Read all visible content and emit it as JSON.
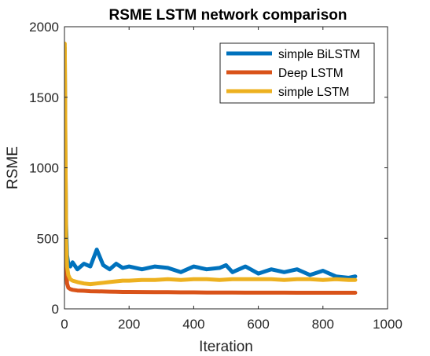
{
  "chart_data": {
    "type": "line",
    "title": "RSME LSTM network comparison",
    "xlabel": "Iteration",
    "ylabel": "RSME",
    "xlim": [
      0,
      1000
    ],
    "ylim": [
      0,
      2000
    ],
    "xticks": [
      0,
      200,
      400,
      600,
      800,
      1000
    ],
    "yticks": [
      0,
      500,
      1000,
      1500,
      2000
    ],
    "xtick_labels": [
      "0",
      "200",
      "400",
      "600",
      "800",
      "1000"
    ],
    "ytick_labels": [
      "0",
      "500",
      "1000",
      "1500",
      "2000"
    ],
    "grid": false,
    "box": true,
    "legend_position": "top-right",
    "series": [
      {
        "name": "simple BiLSTM",
        "color": "#0072BD",
        "x": [
          1,
          3,
          5,
          8,
          12,
          18,
          25,
          40,
          60,
          80,
          100,
          120,
          140,
          160,
          180,
          200,
          240,
          280,
          320,
          360,
          400,
          440,
          480,
          500,
          520,
          560,
          600,
          640,
          680,
          720,
          760,
          800,
          840,
          880,
          900
        ],
        "values": [
          1850,
          1100,
          600,
          380,
          320,
          300,
          330,
          280,
          320,
          300,
          420,
          310,
          280,
          320,
          290,
          300,
          280,
          300,
          290,
          260,
          300,
          280,
          290,
          310,
          260,
          300,
          250,
          280,
          260,
          280,
          240,
          270,
          230,
          220,
          230
        ]
      },
      {
        "name": "Deep LSTM",
        "color": "#D95319",
        "x": [
          1,
          3,
          5,
          8,
          12,
          18,
          25,
          40,
          60,
          80,
          100,
          120,
          140,
          160,
          180,
          200,
          240,
          280,
          320,
          360,
          400,
          440,
          480,
          520,
          560,
          600,
          640,
          680,
          720,
          760,
          800,
          840,
          880,
          900
        ],
        "values": [
          1800,
          600,
          300,
          180,
          150,
          140,
          135,
          130,
          128,
          125,
          124,
          123,
          122,
          121,
          120,
          120,
          119,
          118,
          118,
          117,
          117,
          116,
          116,
          116,
          115,
          115,
          115,
          115,
          114,
          114,
          114,
          114,
          114,
          114
        ]
      },
      {
        "name": "simple LSTM",
        "color": "#EDB120",
        "x": [
          1,
          3,
          5,
          8,
          12,
          18,
          25,
          40,
          60,
          80,
          100,
          120,
          140,
          160,
          180,
          200,
          240,
          280,
          320,
          360,
          400,
          440,
          480,
          520,
          560,
          600,
          640,
          680,
          720,
          760,
          800,
          840,
          880,
          900
        ],
        "values": [
          1880,
          1200,
          500,
          300,
          240,
          210,
          200,
          190,
          180,
          175,
          180,
          185,
          190,
          195,
          200,
          200,
          205,
          205,
          210,
          205,
          210,
          210,
          205,
          210,
          210,
          210,
          210,
          205,
          210,
          210,
          205,
          210,
          205,
          205
        ]
      }
    ]
  }
}
